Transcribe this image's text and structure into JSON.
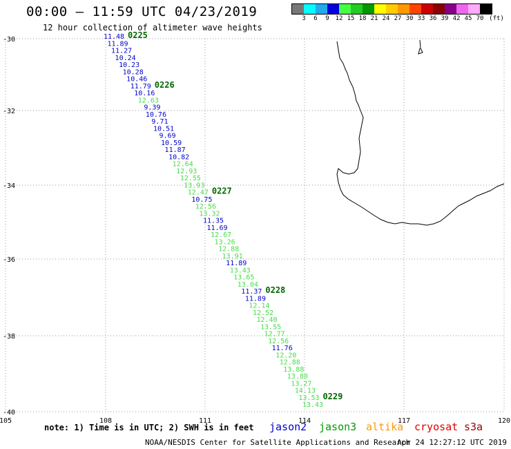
{
  "header": {
    "title": "00:00 – 11:59 UTC 04/23/2019",
    "subtitle": "12 hour collection of altimeter wave heights"
  },
  "legend": {
    "unit": "(ft)",
    "colors": [
      "#777777",
      "#00ffff",
      "#22aaee",
      "#0000dd",
      "#44ff44",
      "#22cc22",
      "#009900",
      "#ffff00",
      "#ffcc00",
      "#ff9900",
      "#ff4400",
      "#cc0000",
      "#880000",
      "#880088",
      "#ee66ee",
      "#ffaaff",
      "#000000"
    ],
    "labels": [
      "3",
      "6",
      "9",
      "12",
      "15",
      "18",
      "21",
      "24",
      "27",
      "30",
      "33",
      "36",
      "39",
      "42",
      "45",
      "70"
    ]
  },
  "axes": {
    "lat_labels": [
      "-30",
      "-32",
      "-34",
      "-36",
      "-38",
      "-40"
    ],
    "lon_labels": [
      "105",
      "108",
      "111",
      "114",
      "117",
      "120"
    ]
  },
  "track": {
    "points": [
      {
        "v": "11.48",
        "s": "jason2"
      },
      {
        "v": "11.89",
        "s": "jason2"
      },
      {
        "v": "11.27",
        "s": "jason2"
      },
      {
        "v": "10.24",
        "s": "jason2"
      },
      {
        "v": "10.23",
        "s": "jason2"
      },
      {
        "v": "10.28",
        "s": "jason2"
      },
      {
        "v": "10.46",
        "s": "jason2"
      },
      {
        "v": "11.79",
        "s": "jason2"
      },
      {
        "v": "10.16",
        "s": "jason2"
      },
      {
        "v": "12.63",
        "s": "jason3"
      },
      {
        "v": "9.39",
        "s": "jason2"
      },
      {
        "v": "10.76",
        "s": "jason2"
      },
      {
        "v": "9.71",
        "s": "jason2"
      },
      {
        "v": "10.51",
        "s": "jason2"
      },
      {
        "v": "9.69",
        "s": "jason2"
      },
      {
        "v": "10.59",
        "s": "jason2"
      },
      {
        "v": "11.87",
        "s": "jason2"
      },
      {
        "v": "10.82",
        "s": "jason2"
      },
      {
        "v": "12.64",
        "s": "jason3"
      },
      {
        "v": "12.93",
        "s": "jason3"
      },
      {
        "v": "12.55",
        "s": "jason3"
      },
      {
        "v": "13.93",
        "s": "jason3"
      },
      {
        "v": "12.47",
        "s": "jason3"
      },
      {
        "v": "10.75",
        "s": "jason2"
      },
      {
        "v": "12.56",
        "s": "jason3"
      },
      {
        "v": "13.32",
        "s": "jason3"
      },
      {
        "v": "11.35",
        "s": "jason2"
      },
      {
        "v": "11.69",
        "s": "jason2"
      },
      {
        "v": "12.67",
        "s": "jason3"
      },
      {
        "v": "13.26",
        "s": "jason3"
      },
      {
        "v": "12.88",
        "s": "jason3"
      },
      {
        "v": "13.91",
        "s": "jason3"
      },
      {
        "v": "11.89",
        "s": "jason2"
      },
      {
        "v": "13.43",
        "s": "jason3"
      },
      {
        "v": "13.65",
        "s": "jason3"
      },
      {
        "v": "13.04",
        "s": "jason3"
      },
      {
        "v": "11.37",
        "s": "jason2"
      },
      {
        "v": "11.89",
        "s": "jason2"
      },
      {
        "v": "12.14",
        "s": "jason3"
      },
      {
        "v": "12.52",
        "s": "jason3"
      },
      {
        "v": "12.40",
        "s": "jason3"
      },
      {
        "v": "13.55",
        "s": "jason3"
      },
      {
        "v": "12.77",
        "s": "jason3"
      },
      {
        "v": "12.56",
        "s": "jason3"
      },
      {
        "v": "11.76",
        "s": "jason2"
      },
      {
        "v": "12.20",
        "s": "jason3"
      },
      {
        "v": "12.88",
        "s": "jason3"
      },
      {
        "v": "13.88",
        "s": "jason3"
      },
      {
        "v": "13.80",
        "s": "jason3"
      },
      {
        "v": "13.27",
        "s": "jason3"
      },
      {
        "v": "14.13",
        "s": "jason3"
      },
      {
        "v": "13.53",
        "s": "jason3"
      },
      {
        "v": "13.43",
        "s": "jason3"
      }
    ],
    "times": [
      {
        "label": "0225",
        "at": 0
      },
      {
        "label": "0226",
        "at": 7
      },
      {
        "label": "0227",
        "at": 22
      },
      {
        "label": "0228",
        "at": 36
      },
      {
        "label": "0229",
        "at": 51
      }
    ]
  },
  "footer": {
    "note": "note: 1) Time is in UTC; 2) SWH is in feet",
    "credit": "NOAA/NESDIS Center for Satellite Applications and Research",
    "timestamp": "Apr 24 12:27:12 UTC 2019"
  },
  "satellites": [
    {
      "name": "jason2",
      "color": "#0000cc"
    },
    {
      "name": "jason3",
      "color": "#009900"
    },
    {
      "name": "altika",
      "color": "#ff9900"
    },
    {
      "name": "cryosat",
      "color": "#dd0000"
    },
    {
      "name": "s3a",
      "color": "#990000"
    }
  ],
  "colors": {
    "jason2": "#0000cc",
    "jason3": "#44dd44",
    "time_label": "#006600"
  }
}
